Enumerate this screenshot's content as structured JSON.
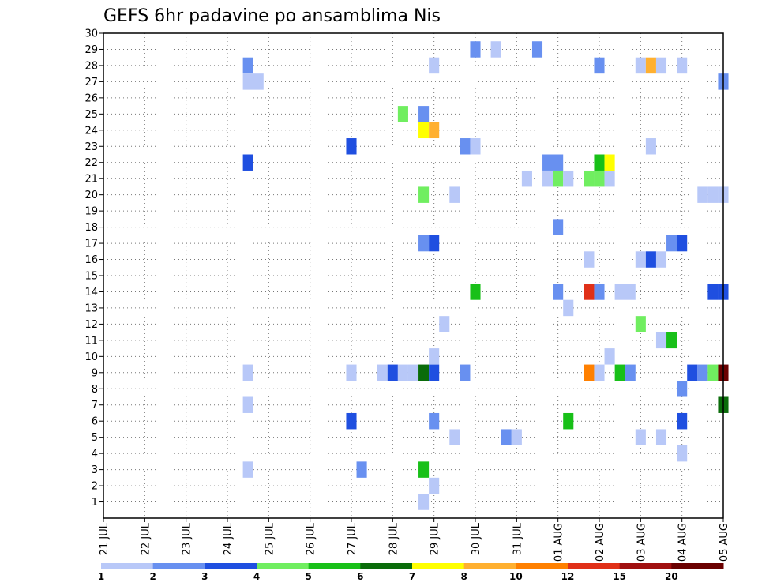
{
  "chart_data": {
    "type": "heatmap",
    "title": "GEFS 6hr padavine po ansamblima Nis",
    "xlabel": "",
    "ylabel": "",
    "x_tick_labels": [
      "21 JUL",
      "22 JUL",
      "23 JUL",
      "24 JUL",
      "25 JUL",
      "26 JUL",
      "27 JUL",
      "28 JUL",
      "29 JUL",
      "30 JUL",
      "31 JUL",
      "01 AUG",
      "02 AUG",
      "03 AUG",
      "04 AUG",
      "05 AUG"
    ],
    "x_range_days": [
      0,
      15
    ],
    "y_tick_labels": [
      "1",
      "2",
      "3",
      "4",
      "5",
      "6",
      "7",
      "8",
      "9",
      "10",
      "11",
      "12",
      "13",
      "14",
      "15",
      "16",
      "17",
      "18",
      "19",
      "20",
      "21",
      "22",
      "23",
      "24",
      "25",
      "26",
      "27",
      "28",
      "29",
      "30"
    ],
    "ylim": [
      0,
      30
    ],
    "grid": true,
    "colorbar": {
      "levels": [
        "1",
        "2",
        "3",
        "4",
        "5",
        "6",
        "7",
        "8",
        "10",
        "12",
        "15",
        "20"
      ],
      "colors": [
        "#b8c8f8",
        "#6890f0",
        "#1f4fe0",
        "#70ee60",
        "#18c018",
        "#0a6c0a",
        "#ffff00",
        "#ffb030",
        "#ff8000",
        "#e03018",
        "#a01010",
        "#6a0000"
      ]
    },
    "cells": [
      {
        "x": 3.5,
        "y": 28,
        "c": 2
      },
      {
        "x": 3.5,
        "y": 27,
        "c": 1
      },
      {
        "x": 3.75,
        "y": 27,
        "c": 1
      },
      {
        "x": 3.5,
        "y": 22,
        "c": 3
      },
      {
        "x": 3.5,
        "y": 9,
        "c": 1
      },
      {
        "x": 3.5,
        "y": 7,
        "c": 1
      },
      {
        "x": 3.5,
        "y": 3,
        "c": 1
      },
      {
        "x": 6.0,
        "y": 23,
        "c": 3
      },
      {
        "x": 6.0,
        "y": 9,
        "c": 1
      },
      {
        "x": 6.0,
        "y": 6,
        "c": 3
      },
      {
        "x": 6.25,
        "y": 3,
        "c": 2
      },
      {
        "x": 6.75,
        "y": 9,
        "c": 1
      },
      {
        "x": 7.0,
        "y": 9,
        "c": 3
      },
      {
        "x": 7.25,
        "y": 9,
        "c": 1
      },
      {
        "x": 7.5,
        "y": 9,
        "c": 1
      },
      {
        "x": 7.25,
        "y": 25,
        "c": 4
      },
      {
        "x": 7.75,
        "y": 25,
        "c": 2
      },
      {
        "x": 7.75,
        "y": 24,
        "c": 7
      },
      {
        "x": 8.0,
        "y": 24,
        "c": 8
      },
      {
        "x": 7.75,
        "y": 20,
        "c": 4
      },
      {
        "x": 7.75,
        "y": 17,
        "c": 2
      },
      {
        "x": 8.0,
        "y": 17,
        "c": 3
      },
      {
        "x": 7.75,
        "y": 9,
        "c": 6
      },
      {
        "x": 8.0,
        "y": 9,
        "c": 3
      },
      {
        "x": 8.0,
        "y": 28,
        "c": 1
      },
      {
        "x": 8.0,
        "y": 10,
        "c": 1
      },
      {
        "x": 8.0,
        "y": 6,
        "c": 2
      },
      {
        "x": 8.0,
        "y": 2,
        "c": 1
      },
      {
        "x": 7.75,
        "y": 3,
        "c": 5
      },
      {
        "x": 7.75,
        "y": 1,
        "c": 1
      },
      {
        "x": 8.25,
        "y": 12,
        "c": 1
      },
      {
        "x": 8.5,
        "y": 20,
        "c": 1
      },
      {
        "x": 8.5,
        "y": 5,
        "c": 1
      },
      {
        "x": 8.75,
        "y": 23,
        "c": 2
      },
      {
        "x": 9.0,
        "y": 23,
        "c": 1
      },
      {
        "x": 8.75,
        "y": 9,
        "c": 2
      },
      {
        "x": 9.0,
        "y": 29,
        "c": 2
      },
      {
        "x": 9.0,
        "y": 14,
        "c": 5
      },
      {
        "x": 9.5,
        "y": 29,
        "c": 1
      },
      {
        "x": 9.75,
        "y": 5,
        "c": 2
      },
      {
        "x": 10.0,
        "y": 5,
        "c": 1
      },
      {
        "x": 10.25,
        "y": 21,
        "c": 1
      },
      {
        "x": 10.5,
        "y": 29,
        "c": 2
      },
      {
        "x": 10.75,
        "y": 22,
        "c": 2
      },
      {
        "x": 11.0,
        "y": 22,
        "c": 2
      },
      {
        "x": 10.75,
        "y": 21,
        "c": 1
      },
      {
        "x": 11.0,
        "y": 21,
        "c": 4
      },
      {
        "x": 11.25,
        "y": 21,
        "c": 1
      },
      {
        "x": 11.0,
        "y": 18,
        "c": 2
      },
      {
        "x": 11.0,
        "y": 14,
        "c": 2
      },
      {
        "x": 11.25,
        "y": 13,
        "c": 1
      },
      {
        "x": 11.25,
        "y": 6,
        "c": 5
      },
      {
        "x": 11.75,
        "y": 21,
        "c": 4
      },
      {
        "x": 12.0,
        "y": 21,
        "c": 4
      },
      {
        "x": 12.25,
        "y": 21,
        "c": 1
      },
      {
        "x": 12.0,
        "y": 22,
        "c": 5
      },
      {
        "x": 12.25,
        "y": 22,
        "c": 7
      },
      {
        "x": 12.0,
        "y": 28,
        "c": 2
      },
      {
        "x": 11.75,
        "y": 16,
        "c": 1
      },
      {
        "x": 11.75,
        "y": 14,
        "c": 10
      },
      {
        "x": 12.0,
        "y": 14,
        "c": 2
      },
      {
        "x": 11.75,
        "y": 9,
        "c": 9
      },
      {
        "x": 12.0,
        "y": 9,
        "c": 1
      },
      {
        "x": 12.25,
        "y": 10,
        "c": 1
      },
      {
        "x": 12.5,
        "y": 14,
        "c": 1
      },
      {
        "x": 12.75,
        "y": 14,
        "c": 1
      },
      {
        "x": 12.5,
        "y": 9,
        "c": 5
      },
      {
        "x": 12.75,
        "y": 9,
        "c": 2
      },
      {
        "x": 13.0,
        "y": 28,
        "c": 1
      },
      {
        "x": 13.25,
        "y": 28,
        "c": 8
      },
      {
        "x": 13.5,
        "y": 28,
        "c": 1
      },
      {
        "x": 13.25,
        "y": 23,
        "c": 1
      },
      {
        "x": 13.0,
        "y": 16,
        "c": 1
      },
      {
        "x": 13.25,
        "y": 16,
        "c": 3
      },
      {
        "x": 13.5,
        "y": 16,
        "c": 1
      },
      {
        "x": 13.0,
        "y": 12,
        "c": 4
      },
      {
        "x": 13.5,
        "y": 11,
        "c": 1
      },
      {
        "x": 13.75,
        "y": 11,
        "c": 5
      },
      {
        "x": 13.0,
        "y": 5,
        "c": 1
      },
      {
        "x": 13.5,
        "y": 5,
        "c": 1
      },
      {
        "x": 14.0,
        "y": 28,
        "c": 1
      },
      {
        "x": 13.75,
        "y": 17,
        "c": 2
      },
      {
        "x": 14.0,
        "y": 17,
        "c": 3
      },
      {
        "x": 14.0,
        "y": 8,
        "c": 2
      },
      {
        "x": 14.0,
        "y": 6,
        "c": 3
      },
      {
        "x": 14.0,
        "y": 4,
        "c": 1
      },
      {
        "x": 14.25,
        "y": 9,
        "c": 3
      },
      {
        "x": 14.5,
        "y": 9,
        "c": 2
      },
      {
        "x": 14.75,
        "y": 9,
        "c": 4
      },
      {
        "x": 15.0,
        "y": 9,
        "c": 12
      },
      {
        "x": 14.5,
        "y": 20,
        "c": 1
      },
      {
        "x": 14.75,
        "y": 20,
        "c": 1
      },
      {
        "x": 15.0,
        "y": 20,
        "c": 1
      },
      {
        "x": 14.75,
        "y": 14,
        "c": 3
      },
      {
        "x": 15.0,
        "y": 14,
        "c": 3
      },
      {
        "x": 15.0,
        "y": 27,
        "c": 2
      },
      {
        "x": 15.0,
        "y": 7,
        "c": 6
      }
    ]
  }
}
